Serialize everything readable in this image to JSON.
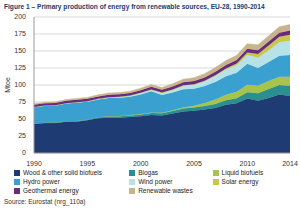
{
  "chart_data": {
    "type": "area",
    "title": "Figure 1 – Primary production of energy from renewable sources, EU-28, 1990-2014",
    "y_label": "Mtoe",
    "source": "Source: Eurostat (nrg_110a)",
    "stacked": true,
    "grid": true,
    "legend": "bottom",
    "x": [
      1990,
      1991,
      1992,
      1993,
      1994,
      1995,
      1996,
      1997,
      1998,
      1999,
      2000,
      2001,
      2002,
      2003,
      2004,
      2005,
      2006,
      2007,
      2008,
      2009,
      2010,
      2011,
      2012,
      2013,
      2014
    ],
    "xlim": [
      1990,
      2014
    ],
    "xticks": [
      1990,
      1995,
      2000,
      2005,
      2010,
      2014
    ],
    "ylim": [
      0,
      200
    ],
    "yticks": [
      0,
      25,
      50,
      75,
      100,
      125,
      150,
      175,
      200
    ],
    "series": [
      {
        "name": "Wood & other solid biofuels",
        "color": "#1f3b73",
        "values": [
          43,
          44,
          44,
          46,
          46,
          48,
          51,
          52,
          52,
          53,
          54,
          56,
          55,
          58,
          61,
          62,
          64,
          66,
          71,
          73,
          80,
          77,
          81,
          86,
          84
        ]
      },
      {
        "name": "Biogas",
        "color": "#2a8f8f",
        "values": [
          0.5,
          0.6,
          0.7,
          0.8,
          1,
          1.2,
          1.4,
          1.7,
          2,
          2.3,
          2.6,
          3,
          3.4,
          3.8,
          4.3,
          4.8,
          5.3,
          6,
          6.7,
          7.6,
          9.2,
          11,
          13,
          14,
          15
        ]
      },
      {
        "name": "Liquid biofuels",
        "color": "#a8c34a",
        "values": [
          0,
          0,
          0,
          0,
          0.1,
          0.2,
          0.3,
          0.3,
          0.4,
          0.5,
          0.6,
          0.7,
          0.9,
          1.2,
          1.6,
          2.6,
          4.2,
          6.5,
          8,
          9.5,
          11,
          11,
          12,
          12,
          13
        ]
      },
      {
        "name": "Hydro power",
        "color": "#3aa0d0",
        "values": [
          24,
          25,
          25,
          26,
          27,
          26,
          26,
          27,
          27,
          27,
          29,
          31,
          26,
          26,
          27,
          25,
          25,
          26,
          27,
          28,
          31,
          26,
          28,
          31,
          32
        ]
      },
      {
        "name": "Wind power",
        "color": "#b7e2e8",
        "values": [
          0.1,
          0.1,
          0.2,
          0.3,
          0.4,
          0.5,
          0.6,
          0.7,
          0.9,
          1.2,
          1.9,
          2.3,
          3,
          3.8,
          5,
          6,
          7,
          9,
          10,
          11,
          13,
          15,
          17,
          20,
          21
        ]
      },
      {
        "name": "Solar energy",
        "color": "#c9c64a",
        "values": [
          0.2,
          0.2,
          0.2,
          0.2,
          0.3,
          0.3,
          0.3,
          0.3,
          0.3,
          0.4,
          0.4,
          0.4,
          0.5,
          0.5,
          0.6,
          0.7,
          0.9,
          1,
          1.6,
          2.5,
          3.5,
          5.5,
          7,
          8,
          9
        ]
      },
      {
        "name": "Geothermal energy",
        "color": "#6a2c7a",
        "values": [
          3.2,
          3.3,
          3.4,
          3.4,
          3.5,
          3.5,
          3.6,
          3.6,
          3.7,
          3.7,
          3.8,
          4,
          4.1,
          4.5,
          4.7,
          4.8,
          4.8,
          5.1,
          5.2,
          5.3,
          5.6,
          5.7,
          5.8,
          5.9,
          6
        ]
      },
      {
        "name": "Renewable wastes",
        "color": "#c8b48a",
        "values": [
          1.5,
          1.6,
          1.7,
          1.8,
          2,
          2.1,
          2.3,
          2.5,
          2.6,
          2.8,
          3,
          3.3,
          3.5,
          4,
          4.4,
          4.8,
          5.5,
          6,
          6.5,
          6.8,
          7.5,
          8,
          8.5,
          8.8,
          9
        ]
      }
    ]
  }
}
